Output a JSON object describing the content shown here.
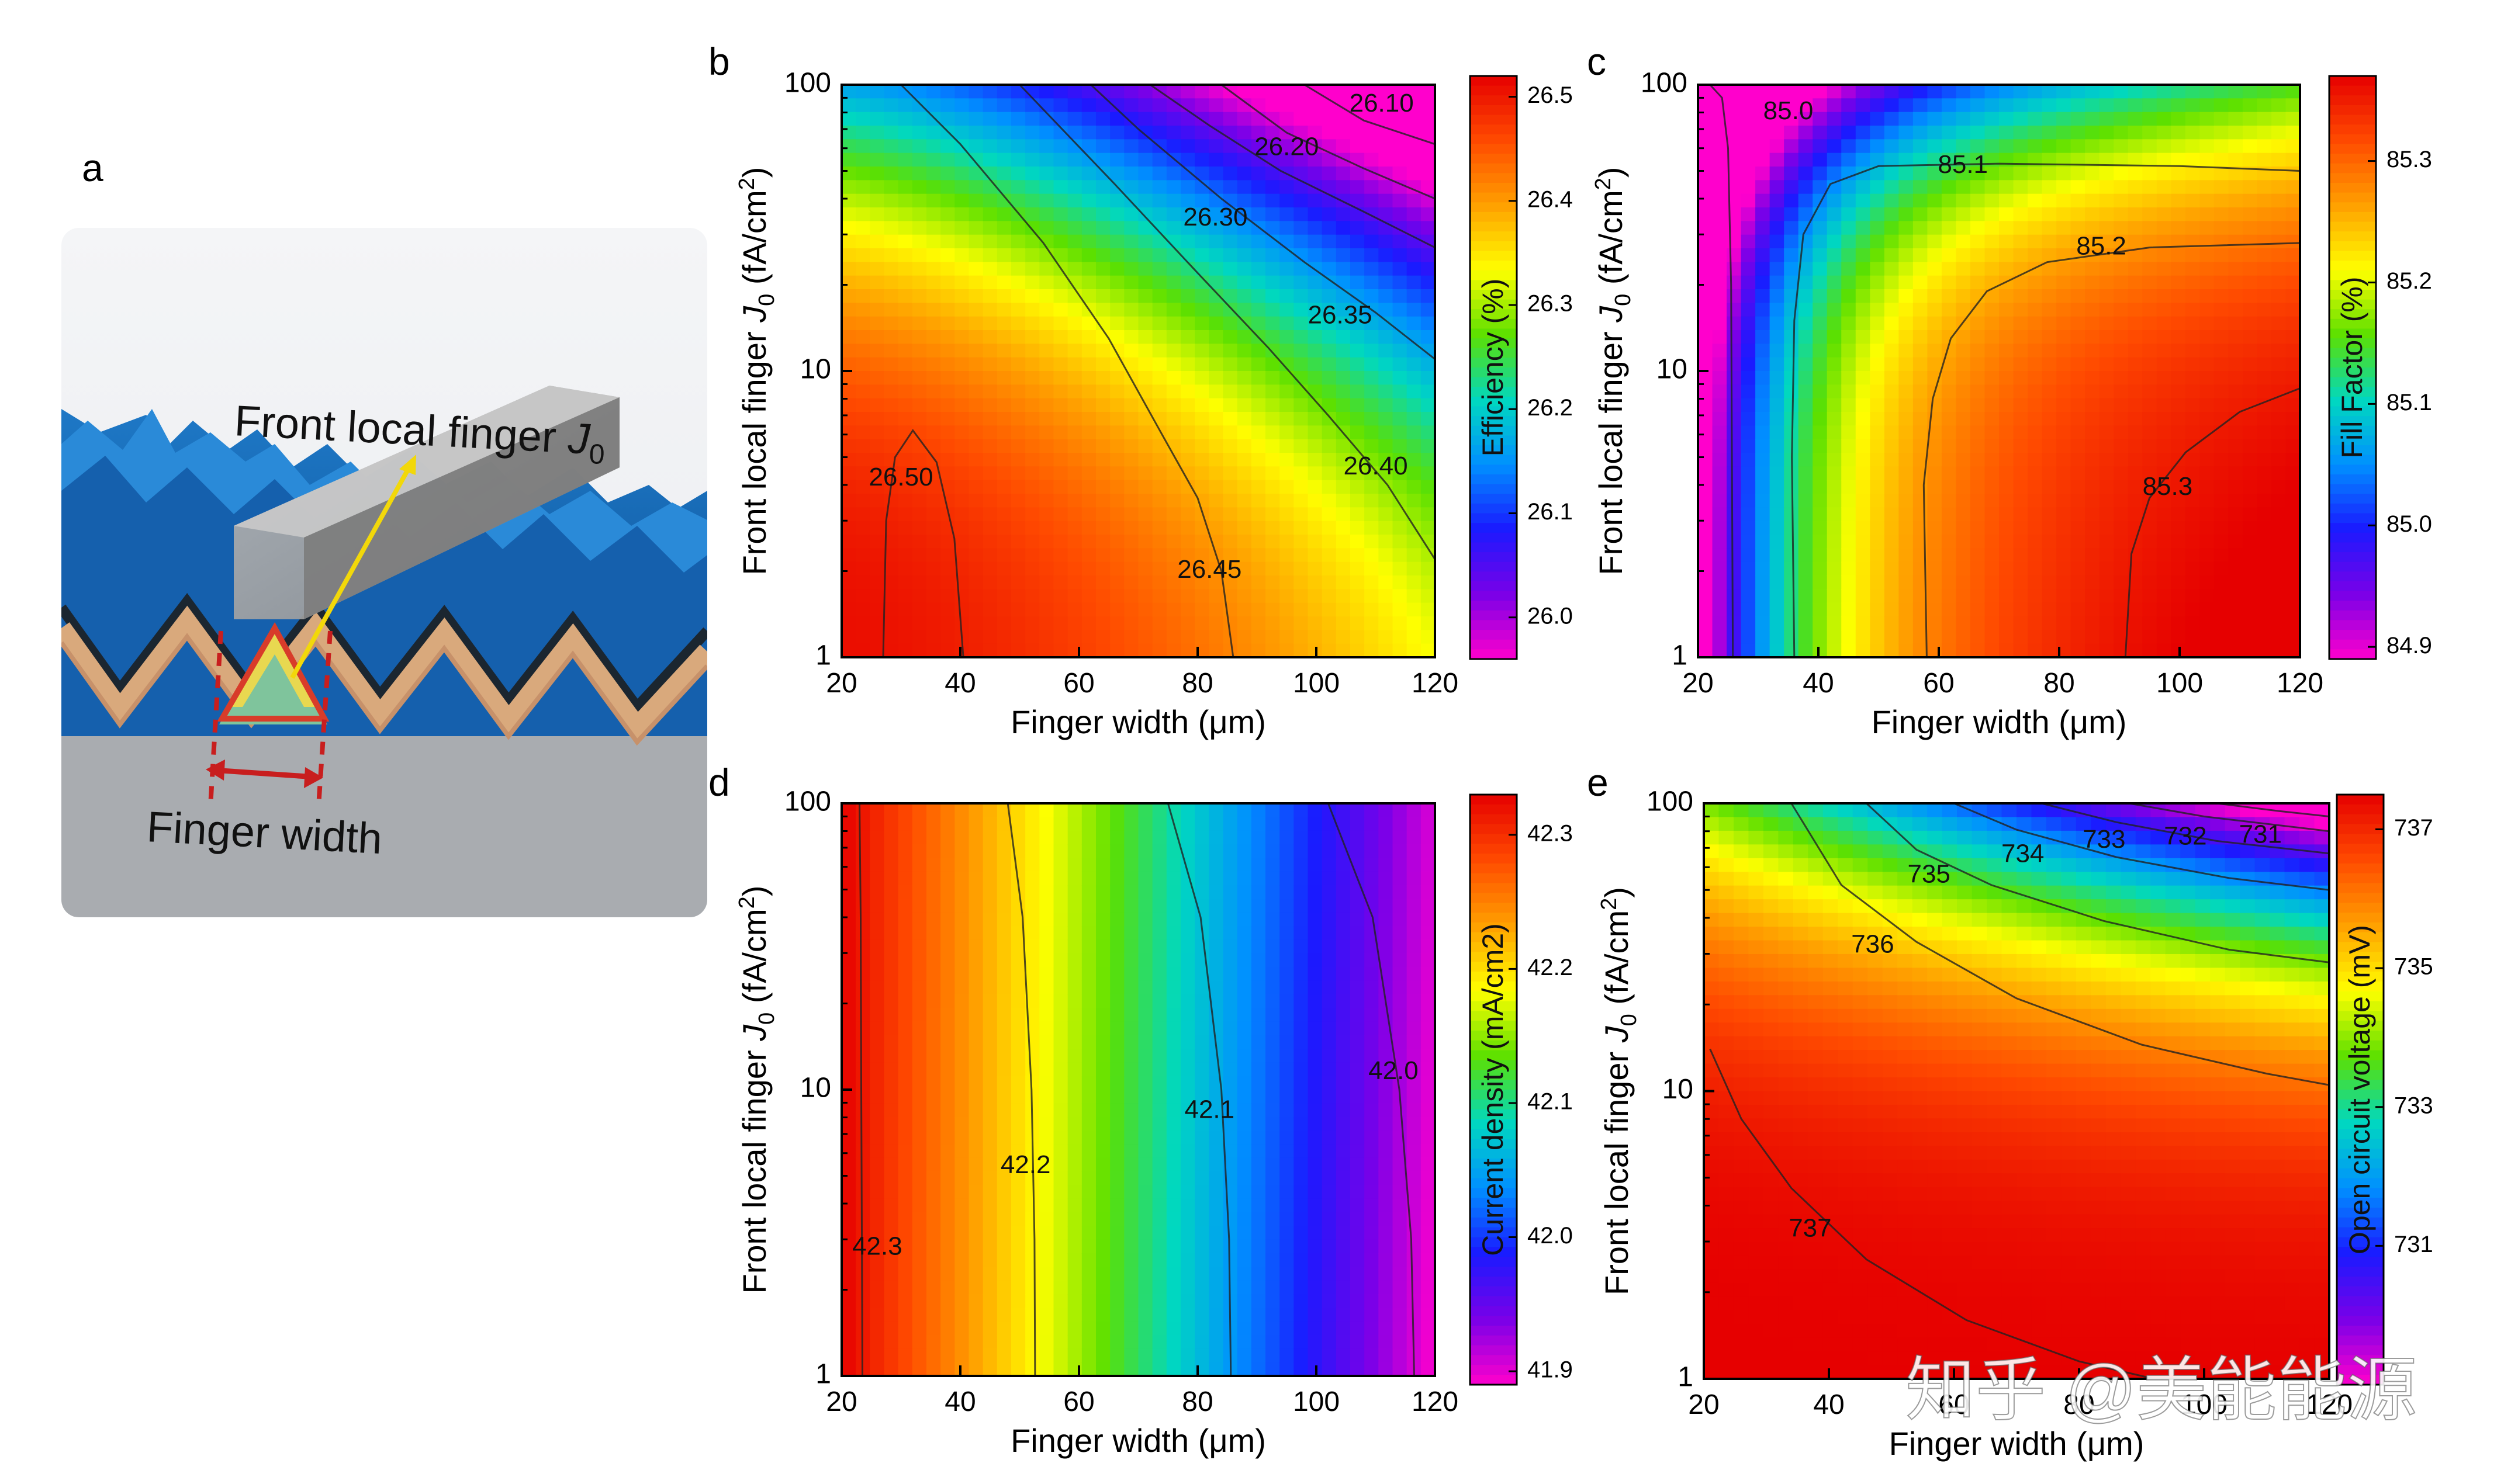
{
  "figure": {
    "illustration": {
      "letter": "a",
      "label_front": "Front local finger",
      "label_front_symbol": "J",
      "label_front_sub": "0",
      "label_width": "Finger width"
    },
    "watermark": "知乎 @美能能源"
  },
  "chart_data": [
    {
      "letter": "b",
      "type": "heatmap",
      "subtype": "contour",
      "xlabel": "Finger width (μm)",
      "ylabel_main": "Front local finger",
      "ylabel_symbol": "J",
      "ylabel_sub": "0",
      "ylabel_unit": "(fA/cm",
      "ylabel_unit_sup": "2",
      "ylabel_unit_end": ")",
      "x_ticks": [
        "20",
        "40",
        "60",
        "80",
        "100",
        "120"
      ],
      "x_range": [
        20,
        120
      ],
      "y_scale": "log",
      "y_ticks": [
        "1",
        "10",
        "100"
      ],
      "y_range": [
        1,
        100
      ],
      "colorbar_label": "Efficiency (%)",
      "colorbar_ticks": [
        "26.5",
        "26.4",
        "26.3",
        "26.2",
        "26.1",
        "26.0"
      ],
      "colorbar_range": [
        25.96,
        26.52
      ],
      "colormap": [
        "#ff00cc",
        "#7a00e8",
        "#1a1aff",
        "#0090ff",
        "#00d8c0",
        "#5ce000",
        "#ffff00",
        "#ffa000",
        "#ff4a00",
        "#e60000"
      ],
      "contour_labels": [
        {
          "text": "26.10",
          "x": 111,
          "y": 85
        },
        {
          "text": "26.20",
          "x": 95,
          "y": 60
        },
        {
          "text": "26.30",
          "x": 83,
          "y": 34
        },
        {
          "text": "26.35",
          "x": 104,
          "y": 15.5
        },
        {
          "text": "26.40",
          "x": 110,
          "y": 4.6
        },
        {
          "text": "26.45",
          "x": 82,
          "y": 2.0
        },
        {
          "text": "26.50",
          "x": 30,
          "y": 4.2
        }
      ],
      "contours": [
        [
          [
            27,
            1
          ],
          [
            27.5,
            3
          ],
          [
            29,
            5
          ],
          [
            32,
            6.2
          ],
          [
            36,
            4.8
          ],
          [
            39,
            2.6
          ],
          [
            40.5,
            1
          ]
        ],
        [
          [
            86,
            1
          ],
          [
            84,
            2
          ],
          [
            80,
            3.6
          ],
          [
            74,
            6
          ],
          [
            65,
            13
          ],
          [
            54,
            28
          ],
          [
            40,
            62
          ],
          [
            30,
            100
          ]
        ],
        [
          [
            120,
            2.2
          ],
          [
            112,
            4
          ],
          [
            102,
            7
          ],
          [
            92,
            12
          ],
          [
            80,
            22
          ],
          [
            66,
            45
          ],
          [
            50,
            100
          ]
        ],
        [
          [
            120,
            11
          ],
          [
            110,
            16
          ],
          [
            98,
            24
          ],
          [
            84,
            40
          ],
          [
            70,
            70
          ],
          [
            62,
            100
          ]
        ],
        [
          [
            120,
            27
          ],
          [
            108,
            36
          ],
          [
            94,
            50
          ],
          [
            82,
            72
          ],
          [
            72,
            100
          ]
        ],
        [
          [
            120,
            40
          ],
          [
            108,
            51
          ],
          [
            95,
            68
          ],
          [
            84,
            100
          ]
        ],
        [
          [
            120,
            62
          ],
          [
            108,
            75
          ],
          [
            98,
            100
          ]
        ]
      ]
    },
    {
      "letter": "c",
      "type": "heatmap",
      "subtype": "contour",
      "xlabel": "Finger width (μm)",
      "ylabel_main": "Front local finger",
      "ylabel_symbol": "J",
      "ylabel_sub": "0",
      "ylabel_unit": "(fA/cm",
      "ylabel_unit_sup": "2",
      "ylabel_unit_end": ")",
      "x_ticks": [
        "20",
        "40",
        "60",
        "80",
        "100",
        "120"
      ],
      "x_range": [
        20,
        120
      ],
      "y_scale": "log",
      "y_ticks": [
        "1",
        "10",
        "100"
      ],
      "y_range": [
        1,
        100
      ],
      "colorbar_label": "Fill Factor (%)",
      "colorbar_ticks": [
        "85.3",
        "85.2",
        "85.1",
        "85.0",
        "84.9"
      ],
      "colorbar_range": [
        84.89,
        85.37
      ],
      "colormap": [
        "#ff00cc",
        "#7a00e8",
        "#1a1aff",
        "#0090ff",
        "#00d8c0",
        "#5ce000",
        "#ffff00",
        "#ffa000",
        "#ff4a00",
        "#e60000"
      ],
      "contour_labels": [
        {
          "text": "85.0",
          "x": 35,
          "y": 80
        },
        {
          "text": "85.1",
          "x": 64,
          "y": 52
        },
        {
          "text": "85.2",
          "x": 87,
          "y": 27
        },
        {
          "text": "85.3",
          "x": 98,
          "y": 3.9
        }
      ],
      "contours": [
        [
          [
            22,
            100
          ],
          [
            24,
            90
          ],
          [
            25,
            60
          ],
          [
            25.5,
            20
          ],
          [
            25.8,
            1
          ]
        ],
        [
          [
            36,
            1
          ],
          [
            35.6,
            5
          ],
          [
            36,
            15
          ],
          [
            37.5,
            30
          ],
          [
            42,
            45
          ],
          [
            50,
            52
          ],
          [
            70,
            53
          ],
          [
            100,
            52
          ],
          [
            120,
            50
          ]
        ],
        [
          [
            58,
            1
          ],
          [
            57.5,
            4
          ],
          [
            59,
            8
          ],
          [
            62,
            13
          ],
          [
            68,
            19
          ],
          [
            78,
            24
          ],
          [
            95,
            27
          ],
          [
            120,
            28
          ]
        ],
        [
          [
            91,
            1
          ],
          [
            92,
            2.3
          ],
          [
            95,
            3.6
          ],
          [
            101,
            5.2
          ],
          [
            110,
            7.2
          ],
          [
            120,
            8.7
          ]
        ]
      ]
    },
    {
      "letter": "d",
      "type": "heatmap",
      "subtype": "contour",
      "xlabel": "Finger width (μm)",
      "ylabel_main": "Front local finger",
      "ylabel_symbol": "J",
      "ylabel_sub": "0",
      "ylabel_unit": "(fA/cm",
      "ylabel_unit_sup": "2",
      "ylabel_unit_end": ")",
      "x_ticks": [
        "20",
        "40",
        "60",
        "80",
        "100",
        "120"
      ],
      "x_range": [
        20,
        120
      ],
      "y_scale": "log",
      "y_ticks": [
        "1",
        "10",
        "100"
      ],
      "y_range": [
        1,
        100
      ],
      "colorbar_label": "Current density (mA/cm2)",
      "colorbar_ticks": [
        "42.3",
        "42.2",
        "42.1",
        "42.0",
        "41.9"
      ],
      "colorbar_range": [
        41.89,
        42.33
      ],
      "colormap": [
        "#ff00cc",
        "#7a00e8",
        "#1a1aff",
        "#0090ff",
        "#00d8c0",
        "#5ce000",
        "#ffff00",
        "#ffa000",
        "#ff4a00",
        "#e60000"
      ],
      "contour_labels": [
        {
          "text": "42.3",
          "x": 26,
          "y": 2.8
        },
        {
          "text": "42.2",
          "x": 51,
          "y": 5.4
        },
        {
          "text": "42.1",
          "x": 82,
          "y": 8.4
        },
        {
          "text": "42.0",
          "x": 113,
          "y": 11.5
        }
      ],
      "contours": [
        [
          [
            23,
            100
          ],
          [
            23.2,
            40
          ],
          [
            23.3,
            10
          ],
          [
            23.5,
            1
          ]
        ],
        [
          [
            48,
            100
          ],
          [
            50.5,
            40
          ],
          [
            52,
            10
          ],
          [
            52.5,
            3
          ],
          [
            52.6,
            1
          ]
        ],
        [
          [
            75,
            100
          ],
          [
            80.5,
            40
          ],
          [
            84,
            10
          ],
          [
            85.3,
            3
          ],
          [
            85.6,
            1
          ]
        ],
        [
          [
            102,
            100
          ],
          [
            109.5,
            40
          ],
          [
            114,
            10
          ],
          [
            116,
            3
          ],
          [
            116.5,
            1
          ]
        ]
      ]
    },
    {
      "letter": "e",
      "type": "heatmap",
      "subtype": "contour",
      "xlabel": "Finger width (μm)",
      "ylabel_main": "Front local finger",
      "ylabel_symbol": "J",
      "ylabel_sub": "0",
      "ylabel_unit": "(fA/cm",
      "ylabel_unit_sup": "2",
      "ylabel_unit_end": ")",
      "x_ticks": [
        "20",
        "40",
        "60",
        "80",
        "100",
        "120"
      ],
      "x_range": [
        20,
        120
      ],
      "y_scale": "log",
      "y_ticks": [
        "1",
        "10",
        "100"
      ],
      "y_range": [
        1,
        100
      ],
      "colorbar_label": "Open circuit voltage (mV)",
      "colorbar_ticks": [
        "737",
        "735",
        "733",
        "731"
      ],
      "colorbar_range": [
        729,
        737.5
      ],
      "colormap": [
        "#ff00cc",
        "#7a00e8",
        "#1a1aff",
        "#0090ff",
        "#00d8c0",
        "#5ce000",
        "#ffff00",
        "#ffa000",
        "#ff4a00",
        "#e60000"
      ],
      "contour_labels": [
        {
          "text": "737",
          "x": 37,
          "y": 3.3
        },
        {
          "text": "736",
          "x": 47,
          "y": 32
        },
        {
          "text": "735",
          "x": 56,
          "y": 56
        },
        {
          "text": "734",
          "x": 71,
          "y": 66
        },
        {
          "text": "733",
          "x": 84,
          "y": 74
        },
        {
          "text": "732",
          "x": 97,
          "y": 76
        },
        {
          "text": "731",
          "x": 109,
          "y": 77
        }
      ],
      "contours": [
        [
          [
            21,
            14
          ],
          [
            26,
            8
          ],
          [
            34,
            4.6
          ],
          [
            46,
            2.6
          ],
          [
            62,
            1.6
          ],
          [
            80,
            1.15
          ],
          [
            92,
            1
          ]
        ],
        [
          [
            34,
            100
          ],
          [
            42,
            52
          ],
          [
            54,
            33
          ],
          [
            70,
            21
          ],
          [
            90,
            14.5
          ],
          [
            110,
            11.5
          ],
          [
            120,
            10.5
          ]
        ],
        [
          [
            46,
            100
          ],
          [
            54,
            69
          ],
          [
            66,
            52
          ],
          [
            84,
            39
          ],
          [
            104,
            31
          ],
          [
            120,
            28
          ]
        ],
        [
          [
            60,
            100
          ],
          [
            70,
            81
          ],
          [
            86,
            65
          ],
          [
            104,
            55
          ],
          [
            120,
            50
          ]
        ],
        [
          [
            74,
            100
          ],
          [
            86,
            86
          ],
          [
            102,
            74
          ],
          [
            120,
            67
          ]
        ],
        [
          [
            88,
            100
          ],
          [
            100,
            90
          ],
          [
            120,
            80
          ]
        ],
        [
          [
            102,
            100
          ],
          [
            112,
            94
          ],
          [
            120,
            90
          ]
        ]
      ]
    }
  ]
}
